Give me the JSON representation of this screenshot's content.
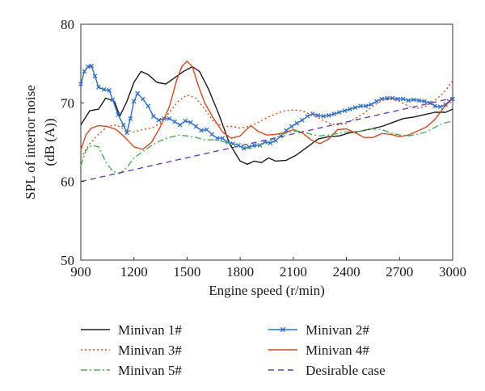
{
  "chart_data": {
    "type": "line",
    "xlabel": "Engine speed (r/min)",
    "ylabel_lines": [
      "SPL of interior noise",
      "(dB (A))"
    ],
    "xlim": [
      900,
      3000
    ],
    "ylim": [
      50,
      80
    ],
    "xticks": [
      900,
      1200,
      1500,
      1800,
      2100,
      2400,
      2700,
      3000
    ],
    "yticks": [
      50,
      60,
      70,
      80
    ],
    "grid": false,
    "legend_position": "bottom",
    "series": [
      {
        "name": "Minivan 1#",
        "color": "#1a1a1a",
        "dash": "solid",
        "marker": "none",
        "points": [
          [
            900,
            67.2
          ],
          [
            950,
            69.0
          ],
          [
            1000,
            69.2
          ],
          [
            1040,
            70.6
          ],
          [
            1090,
            70.2
          ],
          [
            1120,
            68.3
          ],
          [
            1160,
            70.2
          ],
          [
            1200,
            72.6
          ],
          [
            1240,
            74.0
          ],
          [
            1280,
            73.6
          ],
          [
            1330,
            72.6
          ],
          [
            1380,
            72.4
          ],
          [
            1430,
            73.2
          ],
          [
            1480,
            74.0
          ],
          [
            1530,
            74.6
          ],
          [
            1570,
            74.0
          ],
          [
            1620,
            71.8
          ],
          [
            1680,
            68.5
          ],
          [
            1740,
            64.8
          ],
          [
            1780,
            63.3
          ],
          [
            1800,
            62.6
          ],
          [
            1840,
            62.2
          ],
          [
            1880,
            62.6
          ],
          [
            1920,
            62.4
          ],
          [
            1960,
            63.0
          ],
          [
            2000,
            62.6
          ],
          [
            2060,
            62.7
          ],
          [
            2120,
            63.4
          ],
          [
            2180,
            64.4
          ],
          [
            2240,
            65.4
          ],
          [
            2300,
            65.7
          ],
          [
            2360,
            65.8
          ],
          [
            2420,
            66.2
          ],
          [
            2480,
            66.4
          ],
          [
            2540,
            66.7
          ],
          [
            2600,
            67.0
          ],
          [
            2660,
            67.5
          ],
          [
            2720,
            68.0
          ],
          [
            2780,
            68.2
          ],
          [
            2840,
            68.5
          ],
          [
            2900,
            68.8
          ],
          [
            2960,
            68.8
          ],
          [
            3000,
            69.2
          ]
        ]
      },
      {
        "name": "Minivan 2#",
        "color": "#2e6fc9",
        "dash": "solid",
        "marker": "x",
        "points": [
          [
            900,
            72.4
          ],
          [
            920,
            74.0
          ],
          [
            940,
            74.6
          ],
          [
            960,
            74.7
          ],
          [
            980,
            73.4
          ],
          [
            1000,
            72.0
          ],
          [
            1030,
            71.7
          ],
          [
            1060,
            71.6
          ],
          [
            1080,
            70.4
          ],
          [
            1110,
            68.5
          ],
          [
            1140,
            67.2
          ],
          [
            1160,
            66.2
          ],
          [
            1180,
            68.0
          ],
          [
            1200,
            70.2
          ],
          [
            1220,
            71.2
          ],
          [
            1250,
            70.5
          ],
          [
            1280,
            69.6
          ],
          [
            1310,
            68.3
          ],
          [
            1340,
            67.8
          ],
          [
            1370,
            68.0
          ],
          [
            1400,
            68.0
          ],
          [
            1430,
            67.6
          ],
          [
            1460,
            67.2
          ],
          [
            1490,
            67.7
          ],
          [
            1520,
            67.5
          ],
          [
            1550,
            67.0
          ],
          [
            1580,
            66.5
          ],
          [
            1610,
            66.6
          ],
          [
            1640,
            66.0
          ],
          [
            1670,
            65.5
          ],
          [
            1700,
            65.5
          ],
          [
            1730,
            65.0
          ],
          [
            1760,
            64.8
          ],
          [
            1790,
            64.6
          ],
          [
            1820,
            64.2
          ],
          [
            1850,
            64.4
          ],
          [
            1880,
            64.6
          ],
          [
            1910,
            64.6
          ],
          [
            1940,
            65.0
          ],
          [
            1970,
            64.9
          ],
          [
            2000,
            65.2
          ],
          [
            2030,
            65.8
          ],
          [
            2060,
            66.5
          ],
          [
            2090,
            67.0
          ],
          [
            2120,
            67.4
          ],
          [
            2150,
            67.8
          ],
          [
            2180,
            68.3
          ],
          [
            2210,
            68.6
          ],
          [
            2240,
            68.4
          ],
          [
            2270,
            68.3
          ],
          [
            2300,
            68.4
          ],
          [
            2330,
            68.6
          ],
          [
            2360,
            68.8
          ],
          [
            2390,
            69.0
          ],
          [
            2420,
            69.2
          ],
          [
            2450,
            69.4
          ],
          [
            2480,
            69.6
          ],
          [
            2510,
            69.6
          ],
          [
            2540,
            69.8
          ],
          [
            2570,
            70.2
          ],
          [
            2600,
            70.5
          ],
          [
            2630,
            70.6
          ],
          [
            2660,
            70.6
          ],
          [
            2690,
            70.5
          ],
          [
            2720,
            70.5
          ],
          [
            2750,
            70.3
          ],
          [
            2780,
            70.4
          ],
          [
            2810,
            70.3
          ],
          [
            2840,
            70.2
          ],
          [
            2870,
            70.0
          ],
          [
            2900,
            69.6
          ],
          [
            2930,
            69.5
          ],
          [
            2960,
            69.8
          ],
          [
            2980,
            70.2
          ],
          [
            3000,
            70.5
          ]
        ]
      },
      {
        "name": "Minivan 3#",
        "color": "#c8501e",
        "dash": "dotted",
        "marker": "none",
        "points": [
          [
            900,
            63.0
          ],
          [
            950,
            64.8
          ],
          [
            1000,
            66.0
          ],
          [
            1050,
            67.0
          ],
          [
            1100,
            67.2
          ],
          [
            1150,
            66.6
          ],
          [
            1200,
            66.3
          ],
          [
            1250,
            66.6
          ],
          [
            1300,
            66.8
          ],
          [
            1350,
            67.4
          ],
          [
            1400,
            68.8
          ],
          [
            1450,
            70.2
          ],
          [
            1500,
            71.0
          ],
          [
            1550,
            70.6
          ],
          [
            1600,
            69.2
          ],
          [
            1650,
            67.6
          ],
          [
            1700,
            67.0
          ],
          [
            1750,
            67.0
          ],
          [
            1800,
            66.8
          ],
          [
            1850,
            67.0
          ],
          [
            1900,
            67.5
          ],
          [
            1950,
            68.1
          ],
          [
            2000,
            68.6
          ],
          [
            2050,
            69.0
          ],
          [
            2100,
            69.1
          ],
          [
            2150,
            69.0
          ],
          [
            2200,
            68.5
          ],
          [
            2250,
            68.0
          ],
          [
            2300,
            67.4
          ],
          [
            2350,
            67.2
          ],
          [
            2400,
            67.4
          ],
          [
            2450,
            68.0
          ],
          [
            2500,
            68.7
          ],
          [
            2550,
            69.6
          ],
          [
            2600,
            70.3
          ],
          [
            2650,
            70.5
          ],
          [
            2700,
            70.2
          ],
          [
            2750,
            69.6
          ],
          [
            2800,
            69.3
          ],
          [
            2850,
            69.6
          ],
          [
            2900,
            70.3
          ],
          [
            2950,
            71.3
          ],
          [
            3000,
            72.8
          ]
        ]
      },
      {
        "name": "Minivan 4#",
        "color": "#d2491f",
        "dash": "solid",
        "marker": "none",
        "points": [
          [
            900,
            64.0
          ],
          [
            930,
            66.0
          ],
          [
            960,
            66.8
          ],
          [
            1000,
            67.1
          ],
          [
            1050,
            67.0
          ],
          [
            1100,
            66.6
          ],
          [
            1150,
            65.6
          ],
          [
            1200,
            64.4
          ],
          [
            1250,
            64.1
          ],
          [
            1300,
            65.0
          ],
          [
            1350,
            67.0
          ],
          [
            1400,
            69.5
          ],
          [
            1440,
            72.8
          ],
          [
            1470,
            74.6
          ],
          [
            1500,
            75.3
          ],
          [
            1530,
            74.6
          ],
          [
            1560,
            72.4
          ],
          [
            1600,
            70.0
          ],
          [
            1650,
            68.0
          ],
          [
            1700,
            66.3
          ],
          [
            1750,
            65.5
          ],
          [
            1800,
            65.8
          ],
          [
            1830,
            66.5
          ],
          [
            1860,
            67.1
          ],
          [
            1900,
            66.4
          ],
          [
            1950,
            65.9
          ],
          [
            2000,
            66.0
          ],
          [
            2050,
            66.2
          ],
          [
            2100,
            66.6
          ],
          [
            2150,
            66.2
          ],
          [
            2200,
            65.3
          ],
          [
            2250,
            64.8
          ],
          [
            2300,
            65.4
          ],
          [
            2350,
            66.6
          ],
          [
            2400,
            66.7
          ],
          [
            2450,
            66.2
          ],
          [
            2500,
            65.6
          ],
          [
            2550,
            65.6
          ],
          [
            2600,
            66.1
          ],
          [
            2650,
            66.0
          ],
          [
            2700,
            65.7
          ],
          [
            2750,
            65.9
          ],
          [
            2800,
            66.4
          ],
          [
            2850,
            66.9
          ],
          [
            2900,
            67.9
          ],
          [
            2950,
            69.4
          ],
          [
            3000,
            70.6
          ]
        ]
      },
      {
        "name": "Minivan 5#",
        "color": "#4caf50",
        "dash": "dashdot",
        "marker": "none",
        "points": [
          [
            900,
            62.0
          ],
          [
            930,
            64.0
          ],
          [
            960,
            64.6
          ],
          [
            1000,
            64.4
          ],
          [
            1040,
            62.5
          ],
          [
            1080,
            61.3
          ],
          [
            1120,
            61.0
          ],
          [
            1160,
            61.8
          ],
          [
            1200,
            63.0
          ],
          [
            1250,
            63.8
          ],
          [
            1300,
            64.6
          ],
          [
            1350,
            65.2
          ],
          [
            1400,
            65.6
          ],
          [
            1450,
            65.9
          ],
          [
            1500,
            65.8
          ],
          [
            1550,
            65.6
          ],
          [
            1600,
            65.3
          ],
          [
            1650,
            65.3
          ],
          [
            1700,
            65.1
          ],
          [
            1750,
            64.8
          ],
          [
            1800,
            64.6
          ],
          [
            1850,
            64.2
          ],
          [
            1900,
            64.5
          ],
          [
            1950,
            65.0
          ],
          [
            2000,
            65.6
          ],
          [
            2050,
            66.1
          ],
          [
            2100,
            66.4
          ],
          [
            2150,
            66.4
          ],
          [
            2200,
            66.0
          ],
          [
            2250,
            65.8
          ],
          [
            2300,
            65.9
          ],
          [
            2350,
            66.1
          ],
          [
            2400,
            66.3
          ],
          [
            2450,
            66.3
          ],
          [
            2500,
            66.5
          ],
          [
            2550,
            66.7
          ],
          [
            2600,
            66.6
          ],
          [
            2650,
            66.2
          ],
          [
            2700,
            65.9
          ],
          [
            2750,
            65.8
          ],
          [
            2800,
            66.0
          ],
          [
            2850,
            66.3
          ],
          [
            2900,
            66.9
          ],
          [
            2950,
            67.4
          ],
          [
            3000,
            67.7
          ]
        ]
      },
      {
        "name": "Desirable case",
        "color": "#6a3fb5",
        "dash": "dashed",
        "marker": "none",
        "points": [
          [
            900,
            60.0
          ],
          [
            3000,
            70.6
          ]
        ]
      }
    ]
  }
}
